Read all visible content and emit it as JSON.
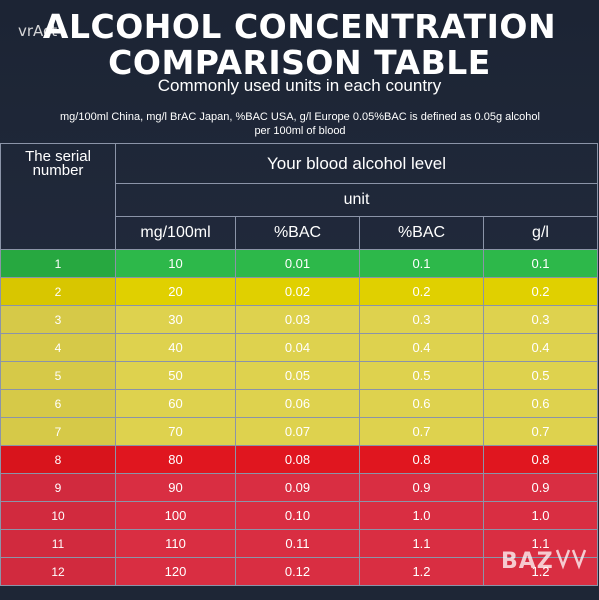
{
  "watermark": "vrAct",
  "title_line1": "ALCOHOL CONCENTRATION",
  "title_line2": "COMPARISON TABLE",
  "subtitle": "Commonly used units in each country",
  "note": "mg/100ml China, mg/l BrAC Japan, %BAC USA, g/l Europe 0.05%BAC is defined as 0.05g alcohol per 100ml of blood",
  "table": {
    "serial_header": "The serial number",
    "level_header": "Your blood alcohol level",
    "unit_header": "unit",
    "columns": [
      "mg/100ml",
      "%BAC",
      "%BAC",
      "g/l"
    ],
    "rows": [
      {
        "serial": "1",
        "values": [
          "10",
          "0.01",
          "0.1",
          "0.1"
        ],
        "color": "#2db84a",
        "serial_color": "#27a840"
      },
      {
        "serial": "2",
        "values": [
          "20",
          "0.02",
          "0.2",
          "0.2"
        ],
        "color": "#e0d000",
        "serial_color": "#d8c600"
      },
      {
        "serial": "3",
        "values": [
          "30",
          "0.03",
          "0.3",
          "0.3"
        ],
        "color": "#ded24e",
        "serial_color": "#d6c948"
      },
      {
        "serial": "4",
        "values": [
          "40",
          "0.04",
          "0.4",
          "0.4"
        ],
        "color": "#ded24e",
        "serial_color": "#d6c948"
      },
      {
        "serial": "5",
        "values": [
          "50",
          "0.05",
          "0.5",
          "0.5"
        ],
        "color": "#ded24e",
        "serial_color": "#d6c948"
      },
      {
        "serial": "6",
        "values": [
          "60",
          "0.06",
          "0.6",
          "0.6"
        ],
        "color": "#ded24e",
        "serial_color": "#d6c948"
      },
      {
        "serial": "7",
        "values": [
          "70",
          "0.07",
          "0.7",
          "0.7"
        ],
        "color": "#ded24e",
        "serial_color": "#d6c948"
      },
      {
        "serial": "8",
        "values": [
          "80",
          "0.08",
          "0.8",
          "0.8"
        ],
        "color": "#e0161f",
        "serial_color": "#d8141c"
      },
      {
        "serial": "9",
        "values": [
          "90",
          "0.09",
          "0.9",
          "0.9"
        ],
        "color": "#d92e42",
        "serial_color": "#d12a3e"
      },
      {
        "serial": "10",
        "values": [
          "100",
          "0.10",
          "1.0",
          "1.0"
        ],
        "color": "#d92e42",
        "serial_color": "#d12a3e"
      },
      {
        "serial": "11",
        "values": [
          "110",
          "0.11",
          "1.1",
          "1.1"
        ],
        "color": "#d92e42",
        "serial_color": "#d12a3e"
      },
      {
        "serial": "12",
        "values": [
          "120",
          "0.12",
          "1.2",
          "1.2"
        ],
        "color": "#d92e42",
        "serial_color": "#d12a3e"
      }
    ]
  },
  "brand_logo_text": "BAZAR"
}
